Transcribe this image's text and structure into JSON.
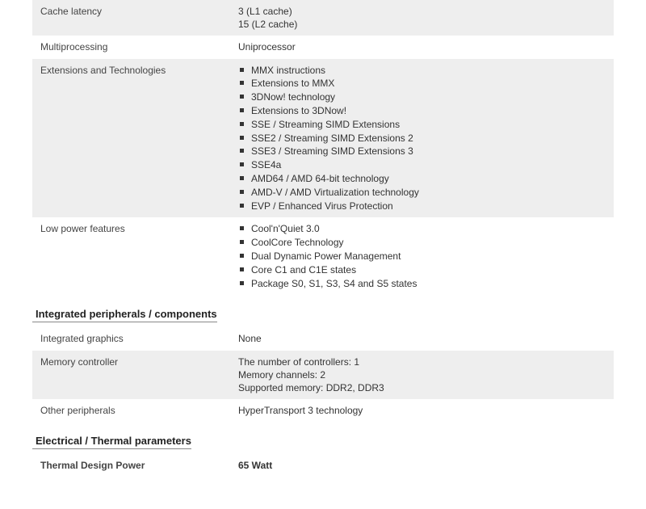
{
  "sections": {
    "main": {
      "rows": [
        {
          "alt": true,
          "label": "Cache latency",
          "lines": [
            "3 (L1 cache)",
            "15 (L2 cache)"
          ]
        },
        {
          "alt": false,
          "label": "Multiprocessing",
          "lines": [
            "Uniprocessor"
          ]
        },
        {
          "alt": true,
          "label": "Extensions and Technologies",
          "bullets": [
            "MMX instructions",
            "Extensions to MMX",
            "3DNow! technology",
            "Extensions to 3DNow!",
            "SSE / Streaming SIMD Extensions",
            "SSE2 / Streaming SIMD Extensions 2",
            "SSE3 / Streaming SIMD Extensions 3",
            "SSE4a",
            "AMD64 / AMD 64-bit technology",
            "AMD-V / AMD Virtualization technology",
            "EVP / Enhanced Virus Protection"
          ]
        },
        {
          "alt": false,
          "label": "Low power features",
          "bullets": [
            "Cool'n'Quiet 3.0",
            "CoolCore Technology",
            "Dual Dynamic Power Management",
            "Core C1 and C1E states",
            "Package S0, S1, S3, S4 and S5 states"
          ]
        }
      ]
    },
    "peripherals": {
      "heading": "Integrated peripherals / components",
      "rows": [
        {
          "alt": false,
          "label": "Integrated graphics",
          "lines": [
            "None"
          ]
        },
        {
          "alt": true,
          "label": "Memory controller",
          "lines": [
            "The number of controllers: 1",
            "Memory channels: 2",
            "Supported memory: DDR2, DDR3"
          ]
        },
        {
          "alt": false,
          "label": "Other peripherals",
          "lines": [
            "HyperTransport 3 technology"
          ]
        }
      ]
    },
    "thermal": {
      "heading": "Electrical / Thermal parameters",
      "rows": [
        {
          "alt": false,
          "bold": true,
          "label": "Thermal Design Power",
          "lines": [
            "65 Watt"
          ]
        }
      ]
    }
  }
}
